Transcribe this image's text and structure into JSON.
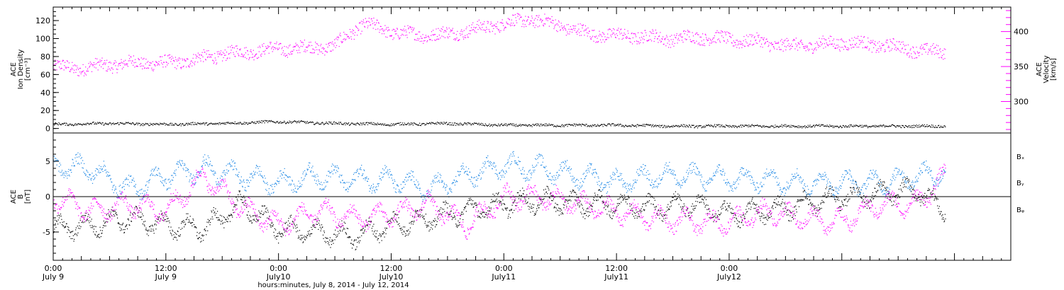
{
  "chart_data": [
    {
      "type": "scatter",
      "panel": "top",
      "ylabel_left": [
        "ACE",
        "Ion Density",
        "[cm⁻³]"
      ],
      "ylabel_right": [
        "ACE",
        "Velocity",
        "[km/s]"
      ],
      "left_ylim": [
        -5,
        135
      ],
      "left_yticks": [
        0,
        20,
        40,
        60,
        80,
        100,
        120
      ],
      "right_ylim": [
        255,
        435
      ],
      "right_yticks": [
        300,
        350,
        400
      ],
      "grid": false,
      "colors": {
        "density": "#000000",
        "velocity": "#ff00ff"
      },
      "series": [
        {
          "axis": "right",
          "color": "#ff00ff",
          "x_hours": [
            0,
            3,
            6,
            9,
            12,
            15,
            18,
            21,
            24,
            27,
            30,
            33,
            36,
            39,
            42,
            45,
            48,
            51,
            54,
            57,
            60,
            63,
            66,
            69,
            72,
            75,
            78,
            81,
            84,
            87,
            90,
            93,
            95
          ],
          "values": [
            350,
            348,
            353,
            356,
            355,
            360,
            368,
            372,
            376,
            377,
            380,
            412,
            400,
            395,
            397,
            404,
            412,
            418,
            409,
            397,
            395,
            393,
            390,
            393,
            389,
            386,
            380,
            381,
            385,
            382,
            378,
            372,
            372
          ]
        },
        {
          "axis": "left",
          "color": "#000000",
          "x_hours": [
            0,
            6,
            12,
            18,
            24,
            30,
            36,
            42,
            48,
            54,
            60,
            66,
            72,
            78,
            84,
            90,
            95
          ],
          "values": [
            5,
            6,
            5,
            6,
            8,
            6,
            5,
            6,
            4,
            4,
            4,
            3,
            3,
            3,
            3,
            3,
            3
          ]
        }
      ]
    },
    {
      "type": "scatter",
      "panel": "bottom",
      "ylabel": [
        "ACE",
        "B",
        "[nT]"
      ],
      "ylim": [
        -9,
        9
      ],
      "yticks": [
        -5,
        0,
        5
      ],
      "zero_line": true,
      "grid": false,
      "legend_position": "right",
      "series": [
        {
          "name": "Bₓ",
          "color": "#000000",
          "x_hours": [
            0,
            4,
            8,
            12,
            16,
            20,
            24,
            28,
            32,
            36,
            40,
            44,
            48,
            52,
            56,
            60,
            64,
            68,
            72,
            76,
            80,
            84,
            88,
            92,
            95
          ],
          "values": [
            -4.5,
            -4,
            -3,
            -4,
            -4.5,
            -1,
            -4.5,
            -5,
            -5.5,
            -4,
            -3,
            -2,
            -1,
            -0.5,
            -1,
            -1,
            -1.5,
            -1,
            -2.5,
            -2,
            -1,
            0,
            0.5,
            1,
            -2
          ]
        },
        {
          "name": "Bᵧ",
          "color": "#1e88e5",
          "x_hours": [
            0,
            4,
            8,
            12,
            16,
            20,
            24,
            28,
            32,
            36,
            40,
            44,
            48,
            52,
            56,
            60,
            64,
            68,
            72,
            76,
            80,
            84,
            88,
            92,
            95
          ],
          "values": [
            4.5,
            4,
            1,
            3,
            4,
            3,
            2,
            3,
            2.5,
            2.5,
            1,
            3,
            4.5,
            4,
            3,
            2,
            3,
            3,
            2.5,
            2.5,
            2,
            2,
            2,
            3,
            3.5
          ]
        },
        {
          "name": "Bᵩ",
          "color": "#ff00ff",
          "x_hours": [
            0,
            4,
            8,
            12,
            16,
            20,
            24,
            28,
            32,
            36,
            40,
            44,
            48,
            52,
            56,
            60,
            64,
            68,
            72,
            76,
            80,
            84,
            88,
            92,
            95
          ],
          "values": [
            0,
            -2,
            -1,
            -2,
            3,
            -1.5,
            -4,
            -2,
            -3,
            -2.5,
            -1,
            -4,
            0,
            0,
            -1,
            -2,
            -3,
            -3.5,
            -3.5,
            -2,
            -3,
            -3.5,
            -1,
            -1,
            3
          ]
        }
      ]
    }
  ],
  "x_axis": {
    "title": "hours:minutes, July  8, 2014 - July 12, 2014",
    "xlim_hours": [
      0,
      102
    ],
    "ticks": [
      {
        "hour": 0,
        "time": "0:00",
        "date": "July 9"
      },
      {
        "hour": 12,
        "time": "12:00",
        "date": "July 9"
      },
      {
        "hour": 24,
        "time": "0:00",
        "date": "July10"
      },
      {
        "hour": 36,
        "time": "12:00",
        "date": "July10"
      },
      {
        "hour": 48,
        "time": "0:00",
        "date": "July11"
      },
      {
        "hour": 60,
        "time": "12:00",
        "date": "July11"
      },
      {
        "hour": 72,
        "time": "0:00",
        "date": "July12"
      }
    ],
    "minor_ticks_per_hour": 1
  }
}
